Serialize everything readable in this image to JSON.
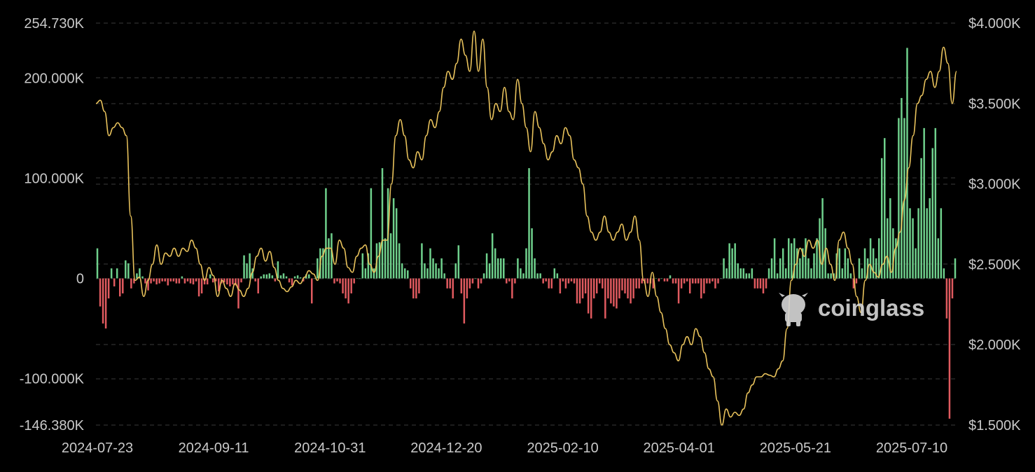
{
  "watermark": {
    "text": "coinglass"
  },
  "colors": {
    "background": "#000000",
    "positive_bar": "#6fd08c",
    "negative_bar": "#e05a5f",
    "price_line": "#e8c25c",
    "grid": "#3a3a3a",
    "text": "#c9c9c9"
  },
  "chart_data": {
    "type": "bar",
    "ylim_left": [
      -146380,
      254730
    ],
    "ylim_right": [
      1500,
      4000
    ],
    "y_ticks_left": [
      {
        "value": 254730,
        "label": "254.730K"
      },
      {
        "value": 200000,
        "label": "200.000K"
      },
      {
        "value": 100000,
        "label": "100.000K"
      },
      {
        "value": 0,
        "label": "0"
      },
      {
        "value": -100000,
        "label": "-100.000K"
      },
      {
        "value": -146380,
        "label": "-146.380K"
      }
    ],
    "y_ticks_right": [
      {
        "value": 4000,
        "label": "$4.000K"
      },
      {
        "value": 3500,
        "label": "$3.500K"
      },
      {
        "value": 3000,
        "label": "$3.000K"
      },
      {
        "value": 2500,
        "label": "$2.500K"
      },
      {
        "value": 2000,
        "label": "$2.000K"
      },
      {
        "value": 1500,
        "label": "$1.500K"
      }
    ],
    "x_tick_labels": [
      "2024-07-23",
      "2024-09-11",
      "2024-10-31",
      "2024-12-20",
      "2025-02-10",
      "2025-04-01",
      "2025-05-21",
      "2025-07-10"
    ],
    "grid": true,
    "legend": "none",
    "series": [
      {
        "type": "bar",
        "axis": "left",
        "values": [
          30000,
          -28000,
          -45000,
          -50000,
          -20000,
          10000,
          -8000,
          10000,
          -18000,
          -15000,
          18000,
          15000,
          -10000,
          -5000,
          5000,
          10000,
          2000,
          -5000,
          -12000,
          -5000,
          -3000,
          -6000,
          -5000,
          -3000,
          -3000,
          -7000,
          -3000,
          -3000,
          -5000,
          -5000,
          2000,
          -5000,
          -3000,
          -5000,
          -6000,
          -3000,
          -18000,
          -15000,
          -6000,
          -6000,
          4000,
          -4000,
          -3000,
          -13000,
          -5000,
          -4000,
          -6000,
          -8000,
          -6000,
          -7000,
          -30000,
          -4000,
          23000,
          15000,
          25000,
          10000,
          -3000,
          -15000,
          2000,
          4000,
          4000,
          5000,
          3000,
          -3000,
          17000,
          3000,
          5000,
          2000,
          -4000,
          -7000,
          2000,
          3000,
          1000,
          -3000,
          4000,
          4000,
          -25000,
          0,
          20000,
          30000,
          30000,
          90000,
          40000,
          45000,
          -5000,
          -3000,
          -5000,
          -15000,
          -20000,
          -25000,
          -15000,
          -5000,
          0,
          0,
          25000,
          10000,
          25000,
          90000,
          10000,
          35000,
          36000,
          110000,
          40000,
          90000,
          45000,
          80000,
          70000,
          35000,
          15000,
          10000,
          8000,
          -10000,
          -20000,
          -20000,
          -15000,
          35000,
          15000,
          10000,
          30000,
          20000,
          15000,
          10000,
          20000,
          5000,
          -10000,
          -10000,
          -20000,
          15000,
          33000,
          -15000,
          -45000,
          -20000,
          -10000,
          -5000,
          0,
          -10000,
          -5000,
          5000,
          25000,
          15000,
          45000,
          30000,
          20000,
          20000,
          20000,
          -5000,
          -3000,
          -20000,
          -5000,
          20000,
          10000,
          5000,
          30000,
          110000,
          50000,
          20000,
          5000,
          5000,
          -5000,
          -3000,
          -10000,
          -10000,
          10000,
          5000,
          -15000,
          -3000,
          -10000,
          -5000,
          -3000,
          -5000,
          -25000,
          -25000,
          -20000,
          -15000,
          -35000,
          -40000,
          -20000,
          -15000,
          -5000,
          -10000,
          -40000,
          -20000,
          -25000,
          -28000,
          -30000,
          -20000,
          -12000,
          -15000,
          -20000,
          -25000,
          -20000,
          -10000,
          -10000,
          -5000,
          -5000,
          -5000,
          -5000,
          -10000,
          0,
          -3000,
          0,
          -3000,
          -3000,
          3000,
          -5000,
          -5000,
          -25000,
          -10000,
          -5000,
          -3000,
          -15000,
          -5000,
          -5000,
          -5000,
          -20000,
          -15000,
          -5000,
          -5000,
          -3000,
          -10000,
          -5000,
          0,
          20000,
          10000,
          35000,
          30000,
          35000,
          15000,
          10000,
          10000,
          5000,
          5000,
          10000,
          -10000,
          -10000,
          -10000,
          -15000,
          -10000,
          10000,
          20000,
          40000,
          5000,
          20000,
          30000,
          10000,
          40000,
          35000,
          40000,
          30000,
          20000,
          30000,
          40000,
          20000,
          10000,
          25000,
          40000,
          60000,
          80000,
          50000,
          5000,
          5000,
          5000,
          25000,
          30000,
          10000,
          30000,
          20000,
          5000,
          -10000,
          -5000,
          20000,
          10000,
          30000,
          20000,
          40000,
          30000,
          20000,
          40000,
          120000,
          140000,
          60000,
          80000,
          50000,
          40000,
          160000,
          180000,
          160000,
          230000,
          70000,
          60000,
          30000,
          70000,
          120000,
          150000,
          70000,
          80000,
          130000,
          150000,
          40000,
          70000,
          10000,
          -40000,
          -140000,
          -20000,
          20000
        ],
        "positive_color": "#6fd08c",
        "negative_color": "#e05a5f"
      },
      {
        "type": "line",
        "axis": "right",
        "color": "#e8c25c",
        "values": [
          3500,
          3520,
          3450,
          3300,
          3350,
          3380,
          3350,
          3300,
          2800,
          2400,
          2420,
          2300,
          2400,
          2500,
          2620,
          2500,
          2570,
          2550,
          2600,
          2550,
          2600,
          2580,
          2650,
          2600,
          2500,
          2400,
          2480,
          2430,
          2300,
          2400,
          2350,
          2300,
          2380,
          2340,
          2300,
          2350,
          2450,
          2550,
          2600,
          2520,
          2580,
          2480,
          2400,
          2350,
          2330,
          2360,
          2400,
          2380,
          2420,
          2460,
          2440,
          2400,
          2550,
          2600,
          2600,
          2500,
          2650,
          2600,
          2480,
          2450,
          2550,
          2600,
          2620,
          2500,
          2450,
          2550,
          2650,
          2650,
          3000,
          3300,
          3400,
          3300,
          3150,
          3100,
          3200,
          3150,
          3300,
          3400,
          3350,
          3450,
          3600,
          3700,
          3650,
          3750,
          3900,
          3800,
          3700,
          3950,
          3700,
          3900,
          3600,
          3400,
          3500,
          3450,
          3600,
          3450,
          3400,
          3650,
          3500,
          3350,
          3200,
          3450,
          3350,
          3250,
          3150,
          3200,
          3300,
          3250,
          3350,
          3300,
          3150,
          3100,
          3000,
          2800,
          2700,
          2650,
          2700,
          2800,
          2700,
          2650,
          2700,
          2750,
          2650,
          2700,
          2800,
          2650,
          2400,
          2300,
          2450,
          2300,
          2200,
          2100,
          2000,
          1950,
          1900,
          2000,
          2050,
          2000,
          2100,
          2050,
          1950,
          1850,
          1800,
          1650,
          1500,
          1600,
          1550,
          1580,
          1560,
          1600,
          1700,
          1750,
          1800,
          1800,
          1820,
          1810,
          1800,
          1850,
          1900,
          2100,
          2400,
          2500,
          2600,
          2550,
          2650,
          2600,
          2650,
          2500,
          2600,
          2500,
          2400,
          2650,
          2700,
          2600,
          2500,
          2300,
          2200,
          2400,
          2500,
          2450,
          2420,
          2500,
          2550,
          2450,
          2600,
          2700,
          2900,
          3100,
          3300,
          3500,
          3550,
          3650,
          3700,
          3600,
          3700,
          3850,
          3750,
          3500,
          3700
        ]
      }
    ]
  }
}
